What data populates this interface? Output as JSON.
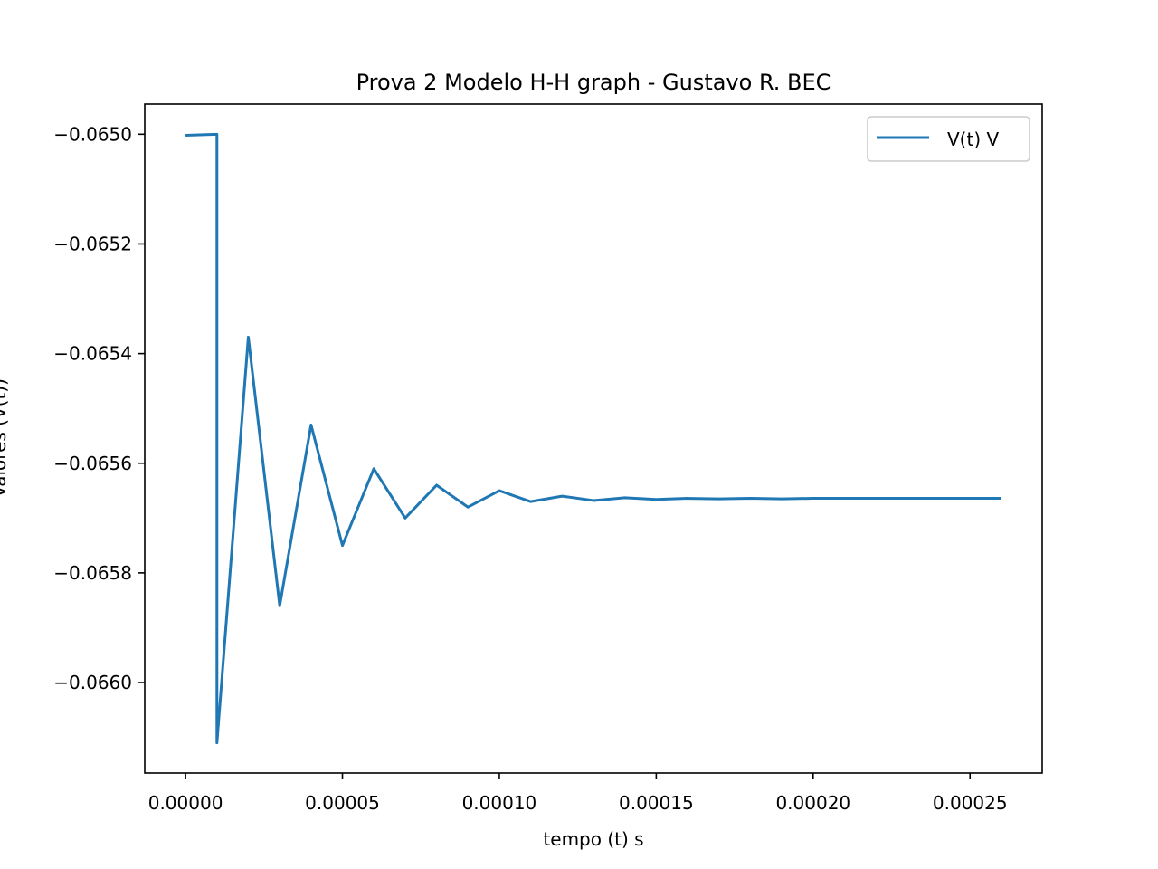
{
  "chart_data": {
    "type": "line",
    "title": "Prova 2 Modelo H-H graph - Gustavo R. BEC",
    "xlabel": "tempo (t) s",
    "ylabel": "Valores (V(t))",
    "xlim": [
      -1.3e-05,
      0.000273
    ],
    "ylim": [
      -0.066165,
      -0.064945
    ],
    "xticks": [
      0,
      5e-05,
      0.0001,
      0.00015,
      0.0002,
      0.00025
    ],
    "xtick_labels": [
      "0.00000",
      "0.00005",
      "0.00010",
      "0.00015",
      "0.00020",
      "0.00025"
    ],
    "yticks": [
      -0.065,
      -0.0652,
      -0.0654,
      -0.0656,
      -0.0658,
      -0.066
    ],
    "ytick_labels": [
      "−0.0650",
      "−0.0652",
      "−0.0654",
      "−0.0656",
      "−0.0658",
      "−0.0660"
    ],
    "legend_position": "top-right",
    "grid": false,
    "series": [
      {
        "name": "V(t) V",
        "color": "#1f77b4",
        "x": [
          0,
          1e-05,
          1e-05,
          2e-05,
          3e-05,
          4e-05,
          5e-05,
          6e-05,
          7e-05,
          8e-05,
          9e-05,
          0.0001,
          0.00011,
          0.00012,
          0.00013,
          0.00014,
          0.00015,
          0.00016,
          0.00017,
          0.00018,
          0.00019,
          0.0002,
          0.00021,
          0.00022,
          0.00023,
          0.00024,
          0.00025,
          0.00026
        ],
        "y": [
          -0.065002,
          -0.065,
          -0.06611,
          -0.06537,
          -0.06586,
          -0.06553,
          -0.06575,
          -0.06561,
          -0.0657,
          -0.06564,
          -0.06568,
          -0.06565,
          -0.06567,
          -0.06566,
          -0.065668,
          -0.065663,
          -0.065666,
          -0.065664,
          -0.065665,
          -0.065664,
          -0.065665,
          -0.065664,
          -0.065664,
          -0.065664,
          -0.065664,
          -0.065664,
          -0.065664,
          -0.065664
        ]
      }
    ]
  }
}
